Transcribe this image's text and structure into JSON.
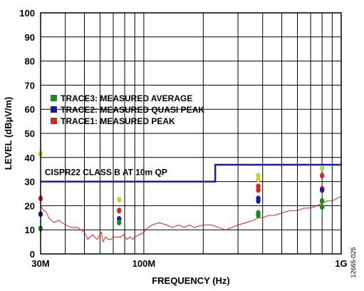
{
  "chart_data": {
    "type": "line",
    "xlabel": "FREQUENCY (Hz)",
    "ylabel": "LEVEL (dBµV/m)",
    "x_scale": "log",
    "xlim": [
      30,
      1000
    ],
    "ylim": [
      0,
      100
    ],
    "x_tick_labels": [
      {
        "value": 30,
        "label": "30M"
      },
      {
        "value": 100,
        "label": "100M"
      },
      {
        "value": 1000,
        "label": "1G"
      }
    ],
    "y_ticks": [
      0,
      10,
      20,
      30,
      40,
      50,
      60,
      70,
      80,
      90,
      100
    ],
    "grid": true,
    "legend": {
      "placement": "middle-left",
      "entries": [
        {
          "name": "TRACE3: MEASURED AVERAGE",
          "color": "#1a8a1a"
        },
        {
          "name": "TRACE2: MEASURED QUASI PEAK",
          "color": "#1a1aa6"
        },
        {
          "name": "TRACE1: MEASURED PEAK",
          "color": "#dd2020"
        }
      ]
    },
    "limit": {
      "label": "CISPR22 CLASS B AT 10m QP",
      "color": "#1a1aa6",
      "segments": [
        {
          "x": [
            30,
            230
          ],
          "y": 30
        },
        {
          "x": [
            230,
            1000
          ],
          "y": 37
        }
      ]
    },
    "trace": {
      "color": "#dd2020",
      "x": [
        30,
        30.5,
        31,
        32,
        33,
        35,
        37,
        40,
        43,
        46,
        50,
        52,
        55,
        58,
        61,
        62,
        64,
        66,
        68,
        70,
        73,
        76,
        79,
        82,
        85,
        88,
        90,
        95,
        100,
        105,
        110,
        120,
        130,
        140,
        150,
        160,
        170,
        180,
        200,
        220,
        240,
        260,
        280,
        300,
        330,
        360,
        380,
        400,
        430,
        460,
        500,
        550,
        600,
        650,
        700,
        750,
        800,
        850,
        900,
        950,
        1000
      ],
      "y": [
        20,
        19,
        18,
        17.5,
        15,
        13,
        14,
        12,
        11,
        11,
        9,
        6,
        8,
        6,
        9,
        5,
        7,
        6,
        6,
        7,
        7,
        7,
        8,
        6,
        7,
        6,
        7,
        8,
        9,
        11,
        12,
        13,
        12,
        11,
        12,
        11,
        12,
        11,
        12,
        12,
        11,
        10,
        11,
        12,
        13,
        14,
        15,
        15,
        16,
        16,
        17,
        18,
        18,
        19,
        19,
        20,
        21,
        22,
        22,
        23,
        24
      ]
    },
    "markers": [
      {
        "x": 30,
        "values": [
          {
            "y": 41.5,
            "color": "#a6e04a"
          },
          {
            "y": 23,
            "color": "#dd2020"
          },
          {
            "y": 16.5,
            "color": "#1a1aa6"
          },
          {
            "y": 10.5,
            "color": "#1a8a1a"
          }
        ]
      },
      {
        "x": 75,
        "values": [
          {
            "y": 22.5,
            "color": "#a6e04a"
          },
          {
            "y": 18,
            "color": "#dd2020"
          },
          {
            "y": 14.5,
            "color": "#1a1aa6"
          },
          {
            "y": 13,
            "color": "#1a8a1a"
          }
        ]
      },
      {
        "x": 380,
        "values": [
          {
            "y": 32.5,
            "color": "#a6e04a"
          },
          {
            "y": 31,
            "color": "#dccc20"
          },
          {
            "y": 28,
            "color": "#dd2020"
          },
          {
            "y": 26.5,
            "color": "#dd2020"
          },
          {
            "y": 23,
            "color": "#1a1aa6"
          },
          {
            "y": 22,
            "color": "#1a1aa6"
          },
          {
            "y": 17,
            "color": "#1a8a1a"
          },
          {
            "y": 16,
            "color": "#1a8a1a"
          }
        ]
      },
      {
        "x": 800,
        "values": [
          {
            "y": 35.5,
            "color": "#a6e04a"
          },
          {
            "y": 32.5,
            "color": "#dd2020"
          },
          {
            "y": 27,
            "color": "#dd2020"
          },
          {
            "y": 26.5,
            "color": "#1a1aa6"
          },
          {
            "y": 22,
            "color": "#1a8a1a"
          },
          {
            "y": 19.5,
            "color": "#1a8a1a"
          }
        ]
      }
    ],
    "figure_id": "12665-025"
  }
}
